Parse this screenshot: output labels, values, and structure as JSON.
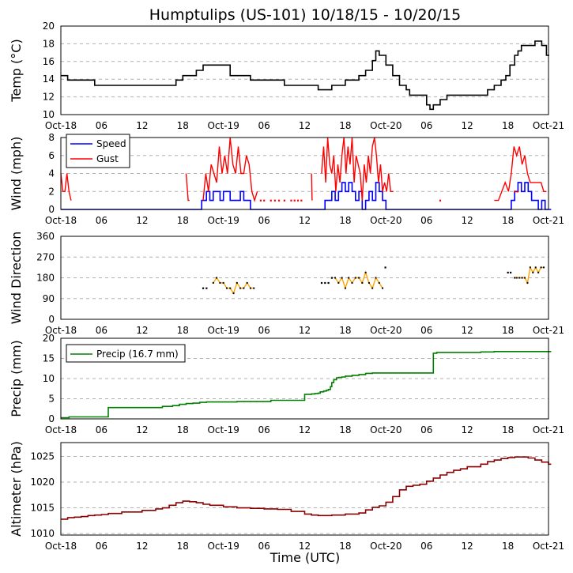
{
  "title": "Humptulips (US-101) 10/18/15 - 10/20/15",
  "xlabel": "Time (UTC)",
  "time_axis": {
    "range_hours": [
      0,
      72
    ],
    "ticks": [
      {
        "h": 0,
        "label": "Oct-18"
      },
      {
        "h": 6,
        "label": "06"
      },
      {
        "h": 12,
        "label": "12"
      },
      {
        "h": 18,
        "label": "18"
      },
      {
        "h": 24,
        "label": "Oct-19"
      },
      {
        "h": 30,
        "label": "06"
      },
      {
        "h": 36,
        "label": "12"
      },
      {
        "h": 42,
        "label": "18"
      },
      {
        "h": 48,
        "label": "Oct-20"
      },
      {
        "h": 54,
        "label": "06"
      },
      {
        "h": 60,
        "label": "12"
      },
      {
        "h": 66,
        "label": "18"
      },
      {
        "h": 72,
        "label": "Oct-21"
      }
    ]
  },
  "colors": {
    "temp": "#000000",
    "speed": "#0000ff",
    "gust": "#ff0000",
    "dir_line": "#ffa500",
    "dir_point": "#000000",
    "precip": "#008000",
    "alt": "#8b0000",
    "grid": "#b0b0b0"
  },
  "chart_data": [
    {
      "type": "line",
      "ylabel": "Temp (°C)",
      "ylim": [
        10,
        20
      ],
      "yticks": [
        10,
        12,
        14,
        16,
        18,
        20
      ],
      "series": [
        {
          "name": "Temp",
          "color": "#000000",
          "step": true,
          "x": [
            0,
            1,
            3,
            5,
            9,
            12,
            16,
            17,
            18,
            19,
            20,
            21,
            23,
            24,
            25,
            26,
            28,
            30,
            32,
            33,
            34,
            35,
            36,
            37,
            38,
            40,
            41,
            42,
            43,
            44,
            45,
            46,
            46.5,
            47,
            48,
            48.5,
            49,
            50,
            51,
            51.5,
            52,
            54,
            54.5,
            55,
            56,
            57,
            58,
            62,
            63,
            64,
            65,
            65.7,
            66.3,
            67,
            67.5,
            68,
            69,
            70,
            70.5,
            71,
            71.7
          ],
          "y": [
            14.4,
            13.9,
            13.9,
            13.3,
            13.3,
            13.3,
            13.3,
            13.9,
            14.4,
            14.4,
            15.0,
            15.6,
            15.6,
            15.6,
            14.4,
            14.4,
            13.9,
            13.9,
            13.9,
            13.3,
            13.3,
            13.3,
            13.3,
            13.3,
            12.8,
            13.3,
            13.3,
            13.9,
            13.9,
            14.4,
            15.0,
            16.1,
            17.2,
            16.7,
            15.6,
            15.6,
            14.4,
            13.3,
            12.8,
            12.2,
            12.2,
            11.1,
            10.6,
            11.1,
            11.7,
            12.2,
            12.2,
            12.2,
            12.8,
            13.3,
            13.9,
            14.4,
            15.6,
            16.7,
            17.2,
            17.8,
            17.8,
            18.3,
            18.3,
            17.8,
            16.7
          ]
        }
      ]
    },
    {
      "type": "line",
      "ylabel": "Wind (mph)",
      "ylim": [
        0,
        8
      ],
      "yticks": [
        0,
        2,
        4,
        6,
        8
      ],
      "legend": "top-left",
      "series": [
        {
          "name": "Speed",
          "color": "#0000ff",
          "step": true,
          "x": [
            0,
            20.8,
            21,
            21.5,
            22,
            22.5,
            23,
            23.5,
            24,
            24.5,
            25,
            25.5,
            26,
            26.5,
            27,
            27.5,
            28,
            38.5,
            39,
            39.5,
            40,
            40.5,
            41,
            41.5,
            42,
            42.5,
            43,
            43.5,
            44,
            44.5,
            45,
            45.5,
            46,
            46.5,
            47,
            47.5,
            48,
            55,
            66,
            66.5,
            67,
            67.5,
            68,
            68.5,
            69,
            69.5,
            70,
            70.5,
            71,
            71.5,
            72
          ],
          "y": [
            0,
            1,
            1,
            2,
            1,
            2,
            2,
            1,
            2,
            2,
            1,
            1,
            1,
            2,
            1,
            1,
            0,
            0,
            1,
            1,
            2,
            1,
            2,
            3,
            2,
            3,
            2,
            1,
            2,
            0,
            1,
            2,
            1,
            3,
            2,
            1,
            0,
            0,
            0,
            1,
            2,
            3,
            2,
            3,
            2,
            1,
            1,
            0,
            1,
            0,
            0
          ]
        },
        {
          "name": "Gust",
          "color": "#ff0000",
          "step": false,
          "segments": [
            {
              "x": [
                0,
                0.3,
                0.6,
                0.9,
                1.2,
                1.5
              ],
              "y": [
                4,
                2,
                2,
                4,
                2,
                1
              ]
            },
            {
              "x": [
                18.5,
                18.8,
                19
              ],
              "y": [
                4,
                1,
                1
              ]
            },
            {
              "x": [
                21,
                21.4,
                21.8,
                22.2,
                22.6,
                23,
                23.4,
                23.8,
                24.2,
                24.6,
                25,
                25.4,
                25.8,
                26.2,
                26.6,
                27,
                27.4,
                27.8,
                28.2,
                28.6,
                29
              ],
              "y": [
                1,
                4,
                2,
                5,
                4,
                3,
                7,
                4,
                6,
                4,
                8,
                5,
                4,
                7,
                4,
                4,
                6,
                5,
                2,
                1,
                2
              ]
            },
            {
              "x": [
                37,
                37.1
              ],
              "y": [
                4,
                1
              ]
            },
            {
              "x": [
                38.5,
                38.8,
                39.1,
                39.4,
                39.7,
                40,
                40.3,
                40.6,
                40.9,
                41.2,
                41.5,
                41.8,
                42.1,
                42.4,
                42.7,
                43,
                43.3,
                43.6,
                43.9,
                44.2,
                44.5,
                44.8,
                45.1,
                45.4,
                45.7,
                46,
                46.3,
                46.6,
                46.9,
                47.2,
                47.5,
                47.8,
                48.1,
                48.4,
                48.7,
                49.1
              ],
              "y": [
                4,
                7,
                3,
                8,
                5,
                4,
                6,
                2,
                5,
                3,
                6,
                8,
                4,
                7,
                5,
                8,
                3,
                6,
                5,
                4,
                1,
                5,
                3,
                6,
                4,
                7,
                8,
                6,
                3,
                5,
                2,
                3,
                2,
                4,
                2,
                2
              ]
            },
            {
              "x": [
                64,
                64.6,
                65.1,
                65.6,
                66.1,
                66.5,
                66.9,
                67.3,
                67.7,
                68.1,
                68.5,
                68.9,
                69.3,
                69.7,
                70.1,
                70.5,
                70.9,
                71.3,
                71.7
              ],
              "y": [
                1,
                1,
                2,
                3,
                2,
                4,
                7,
                6,
                7,
                5,
                6,
                4,
                3,
                3,
                3,
                3,
                3,
                2,
                2
              ]
            }
          ],
          "dots": {
            "x": [
              29.5,
              30,
              31,
              31.6,
              32.2,
              33,
              34,
              34.5,
              35,
              35.5,
              56,
              67,
              67.4
            ],
            "y": [
              1,
              1,
              1,
              1,
              1,
              1,
              1,
              1,
              1,
              1,
              1,
              2,
              2
            ]
          }
        }
      ]
    },
    {
      "type": "scatter",
      "ylabel": "Wind Direction",
      "ylim": [
        0,
        360
      ],
      "yticks": [
        0,
        90,
        180,
        270,
        360
      ],
      "series": [
        {
          "name": "Direction",
          "color": "#ffa500",
          "point_color": "#000000",
          "segments": [
            {
              "x": [
                22.5,
                23,
                23.5,
                24,
                24.5,
                25,
                25.5,
                26,
                26.5,
                27,
                27.5,
                28,
                28.5
              ],
              "y": [
                158,
                180,
                158,
                158,
                135,
                135,
                113,
                158,
                135,
                135,
                158,
                135,
                135
              ]
            },
            {
              "x": [
                40.5,
                41,
                41.5,
                42,
                42.5,
                43,
                43.5,
                44,
                44.5,
                45,
                45.5,
                46,
                46.5,
                47,
                47.5
              ],
              "y": [
                180,
                158,
                180,
                135,
                180,
                158,
                180,
                180,
                158,
                203,
                158,
                135,
                180,
                158,
                135
              ]
            },
            {
              "x": [
                67,
                67.3,
                67.7,
                68.1,
                68.5,
                68.9,
                69.3,
                69.7,
                70.1,
                70.5,
                70.9,
                71.3
              ],
              "y": [
                180,
                180,
                180,
                180,
                180,
                158,
                225,
                203,
                225,
                203,
                225,
                225
              ]
            }
          ],
          "dots": {
            "x": [
              21,
              21.5,
              38.5,
              39,
              39.5,
              40,
              47.9,
              66,
              66.4
            ],
            "y": [
              135,
              135,
              158,
              158,
              158,
              180,
              225,
              203,
              203
            ]
          }
        }
      ]
    },
    {
      "type": "line",
      "ylabel": "Precip (mm)",
      "ylim": [
        0,
        20
      ],
      "yticks": [
        0,
        5,
        10,
        15,
        20
      ],
      "legend": "top-left",
      "series": [
        {
          "name": "Precip (16.7 mm)",
          "color": "#008000",
          "step": true,
          "x": [
            0,
            1.2,
            7,
            15,
            16.5,
            17.5,
            18.5,
            19.5,
            20.5,
            21.5,
            26,
            31,
            36,
            37,
            37.5,
            38,
            38.3,
            38.8,
            39.2,
            39.5,
            39.8,
            40,
            40.3,
            40.7,
            41,
            41.5,
            42,
            43,
            44,
            45,
            46,
            47,
            48,
            49,
            55,
            55.5,
            60,
            62,
            64,
            72
          ],
          "y": [
            0.3,
            0.5,
            2.8,
            3.1,
            3.3,
            3.6,
            3.8,
            3.9,
            4.1,
            4.2,
            4.3,
            4.6,
            6.1,
            6.2,
            6.3,
            6.4,
            6.7,
            6.9,
            7.1,
            7.3,
            8.0,
            9.0,
            9.7,
            10.2,
            10.3,
            10.4,
            10.6,
            10.8,
            11.0,
            11.3,
            11.4,
            11.4,
            11.4,
            11.4,
            16.3,
            16.5,
            16.5,
            16.6,
            16.7,
            16.7
          ]
        }
      ]
    },
    {
      "type": "line",
      "ylabel": "Altimeter (hPa)",
      "ylim": [
        1009.7,
        1027.7
      ],
      "yticks": [
        1010,
        1015,
        1020,
        1025
      ],
      "series": [
        {
          "name": "Altimeter",
          "color": "#8b0000",
          "step": true,
          "x": [
            0,
            1,
            2,
            3,
            4,
            5,
            6,
            7,
            9,
            12,
            14,
            15,
            16,
            17,
            18,
            19,
            20,
            21,
            22,
            24,
            26,
            28,
            30,
            32,
            34,
            36,
            37,
            38,
            40,
            42,
            44,
            45,
            46,
            47,
            48,
            49,
            50,
            51,
            52,
            53,
            54,
            55,
            56,
            57,
            58,
            59,
            60,
            62,
            63,
            64,
            65,
            66,
            67,
            68,
            69,
            70,
            71,
            72
          ],
          "y": [
            1012.8,
            1013.1,
            1013.2,
            1013.3,
            1013.5,
            1013.6,
            1013.7,
            1013.9,
            1014.2,
            1014.5,
            1014.8,
            1015.0,
            1015.5,
            1016.0,
            1016.3,
            1016.2,
            1016.0,
            1015.7,
            1015.5,
            1015.2,
            1015.0,
            1014.9,
            1014.8,
            1014.7,
            1014.3,
            1013.8,
            1013.6,
            1013.5,
            1013.6,
            1013.8,
            1014.0,
            1014.6,
            1015.1,
            1015.4,
            1016.1,
            1017.2,
            1018.5,
            1019.2,
            1019.4,
            1019.6,
            1020.2,
            1020.8,
            1021.4,
            1021.9,
            1022.3,
            1022.6,
            1023.0,
            1023.5,
            1024.0,
            1024.3,
            1024.6,
            1024.8,
            1024.9,
            1024.9,
            1024.7,
            1024.3,
            1023.9,
            1023.5
          ]
        }
      ]
    }
  ]
}
